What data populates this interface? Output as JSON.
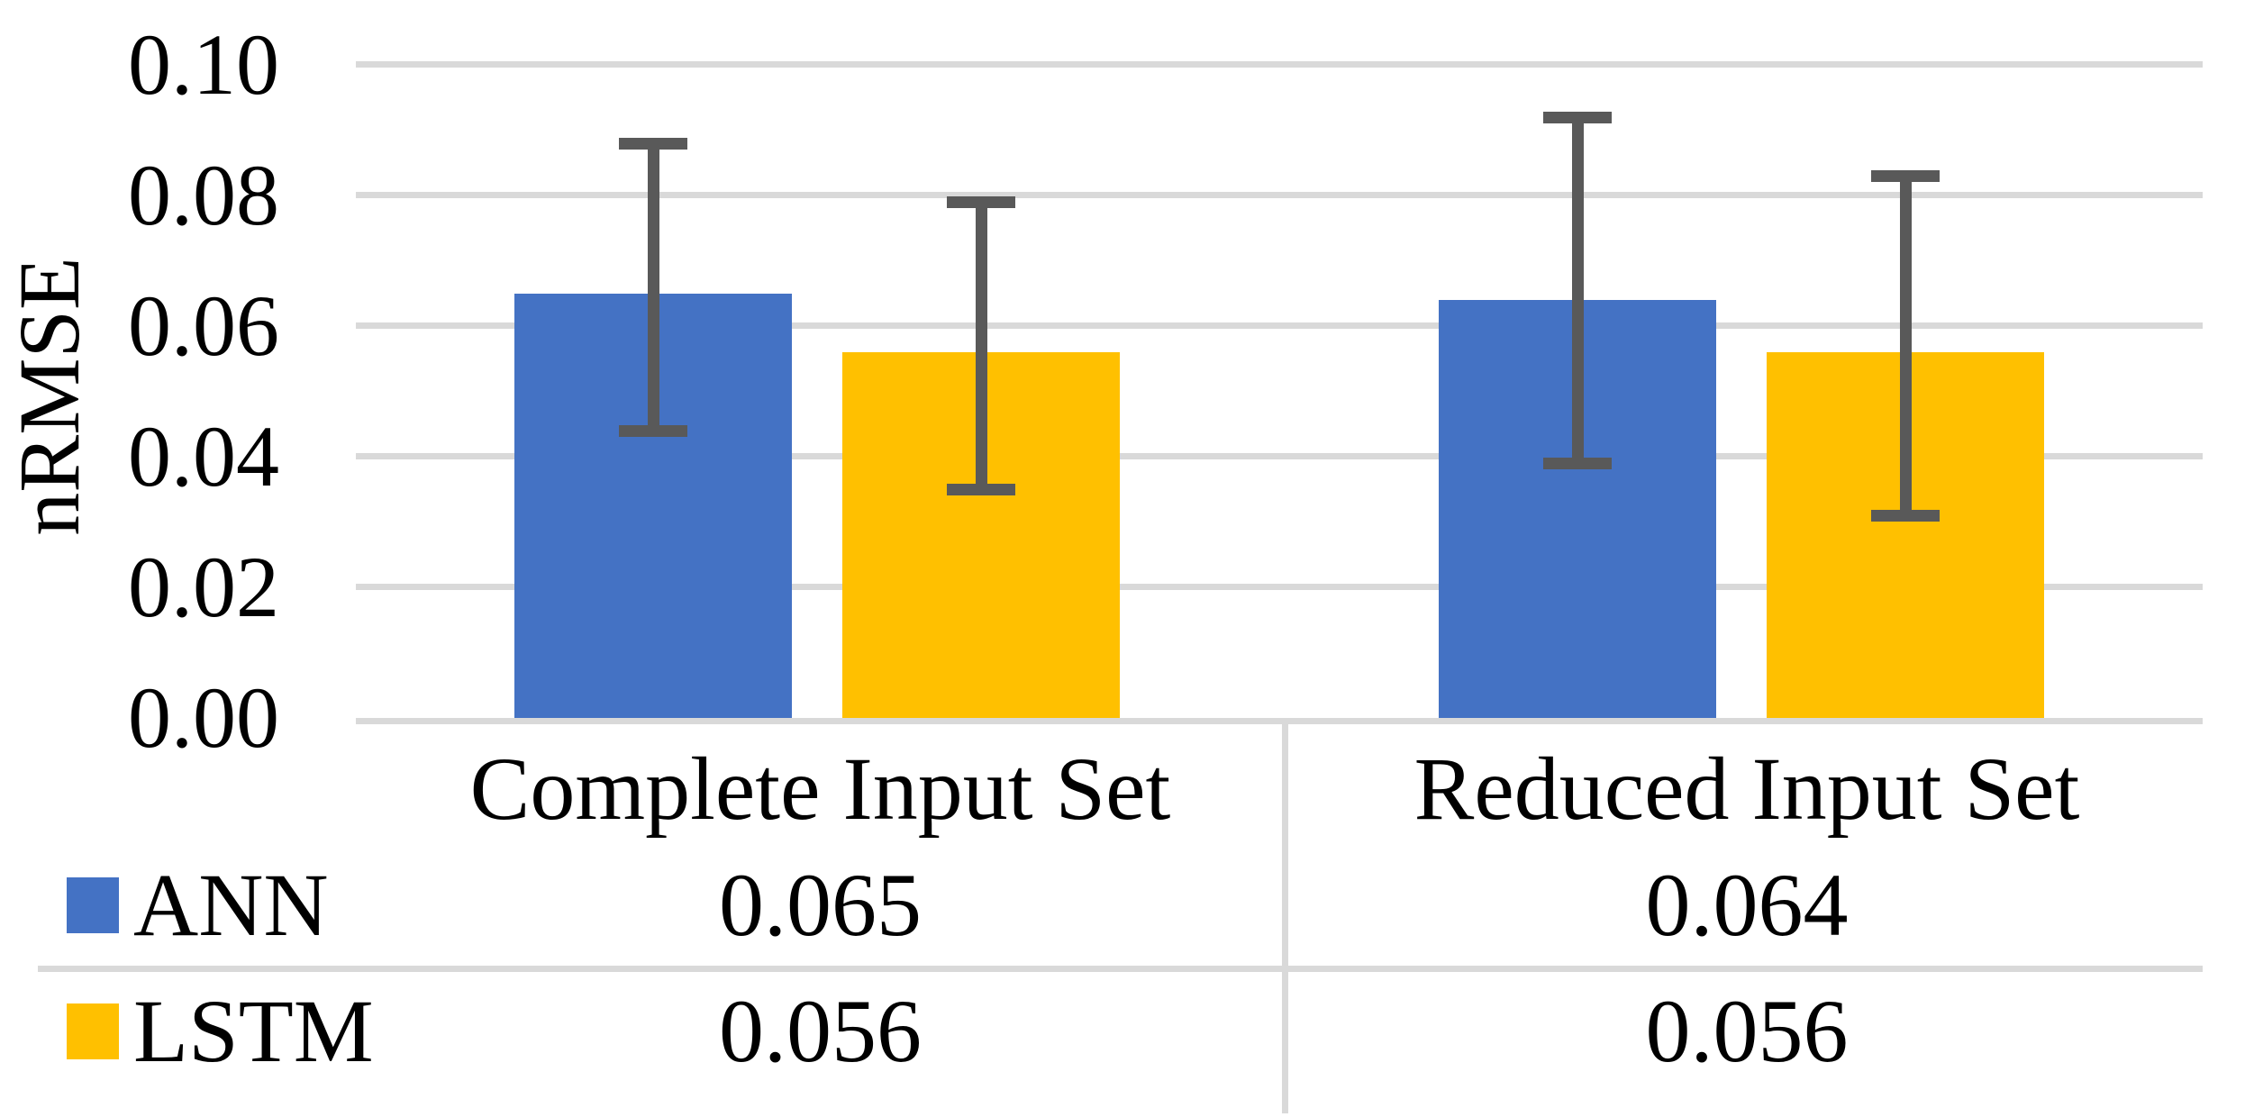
{
  "chart_data": {
    "type": "bar",
    "title": "",
    "ylabel": "nRMSE",
    "xlabel": "",
    "categories": [
      "Complete Input Set",
      "Reduced Input Set"
    ],
    "series": [
      {
        "name": "ANN",
        "color": "#4472C4",
        "values": [
          0.065,
          0.064
        ],
        "display": [
          "0.065",
          "0.064"
        ],
        "error_high": [
          0.088,
          0.092
        ],
        "error_low": [
          0.044,
          0.039
        ]
      },
      {
        "name": "LSTM",
        "color": "#FFC000",
        "values": [
          0.056,
          0.056
        ],
        "display": [
          "0.056",
          "0.056"
        ],
        "error_high": [
          0.079,
          0.083
        ],
        "error_low": [
          0.035,
          0.031
        ]
      }
    ],
    "yticks": [
      "0.00",
      "0.02",
      "0.04",
      "0.06",
      "0.08",
      "0.10"
    ],
    "ylim": [
      0,
      0.1
    ],
    "grid": true,
    "legend_position": "table-below-left",
    "colors": {
      "gridline": "#D9D9D9",
      "error_bar": "#595959",
      "text": "#000000",
      "background": "#FFFFFF"
    }
  }
}
